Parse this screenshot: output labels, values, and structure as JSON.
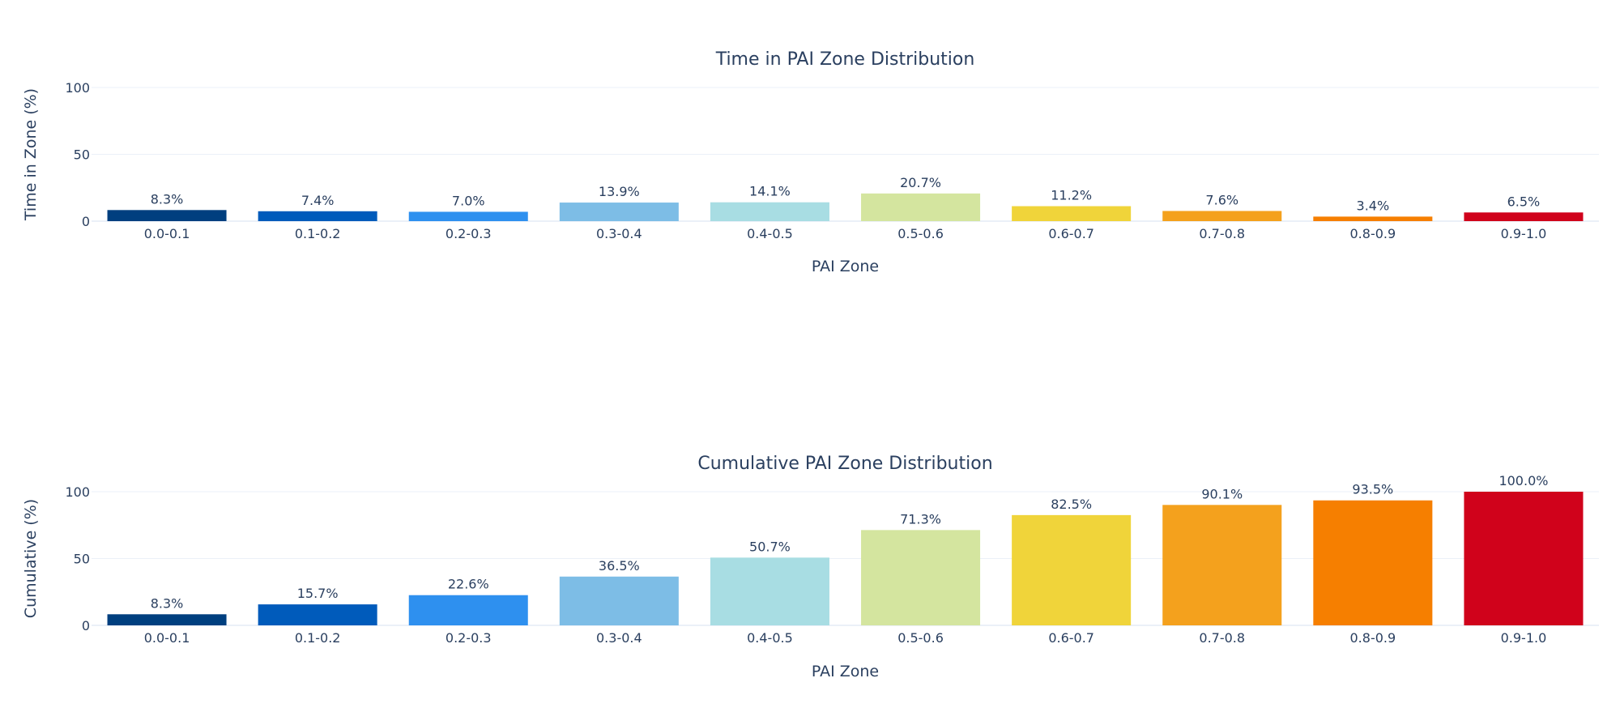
{
  "chart_data": [
    {
      "type": "bar",
      "title": "Time in PAI Zone Distribution",
      "xlabel": "PAI Zone",
      "ylabel": "Time in Zone (%)",
      "ylim": [
        0,
        100
      ],
      "yticks": [
        "0",
        "50",
        "100"
      ],
      "grid": true,
      "categories": [
        "0.0-0.1",
        "0.1-0.2",
        "0.2-0.3",
        "0.3-0.4",
        "0.4-0.5",
        "0.5-0.6",
        "0.6-0.7",
        "0.7-0.8",
        "0.8-0.9",
        "0.9-1.0"
      ],
      "values": [
        8.3,
        7.4,
        7.0,
        13.9,
        14.1,
        20.7,
        11.2,
        7.6,
        3.4,
        6.5
      ],
      "labels": [
        "8.3%",
        "7.4%",
        "7.0%",
        "13.9%",
        "14.1%",
        "20.7%",
        "11.2%",
        "7.6%",
        "3.4%",
        "6.5%"
      ],
      "colors": [
        "#003f7f",
        "#005bbb",
        "#2e90ef",
        "#7dbde6",
        "#a8dde3",
        "#d4e59f",
        "#f0d43a",
        "#f4a11d",
        "#f67f00",
        "#d0021b"
      ]
    },
    {
      "type": "bar",
      "title": "Cumulative PAI Zone Distribution",
      "xlabel": "PAI Zone",
      "ylabel": "Cumulative (%)",
      "ylim": [
        0,
        100
      ],
      "yticks": [
        "0",
        "50",
        "100"
      ],
      "grid": true,
      "categories": [
        "0.0-0.1",
        "0.1-0.2",
        "0.2-0.3",
        "0.3-0.4",
        "0.4-0.5",
        "0.5-0.6",
        "0.6-0.7",
        "0.7-0.8",
        "0.8-0.9",
        "0.9-1.0"
      ],
      "values": [
        8.3,
        15.7,
        22.6,
        36.5,
        50.7,
        71.3,
        82.5,
        90.1,
        93.5,
        100.0
      ],
      "labels": [
        "8.3%",
        "15.7%",
        "22.6%",
        "36.5%",
        "50.7%",
        "71.3%",
        "82.5%",
        "90.1%",
        "93.5%",
        "100.0%"
      ],
      "colors": [
        "#003f7f",
        "#005bbb",
        "#2e90ef",
        "#7dbde6",
        "#a8dde3",
        "#d4e59f",
        "#f0d43a",
        "#f4a11d",
        "#f67f00",
        "#d0021b"
      ]
    }
  ]
}
